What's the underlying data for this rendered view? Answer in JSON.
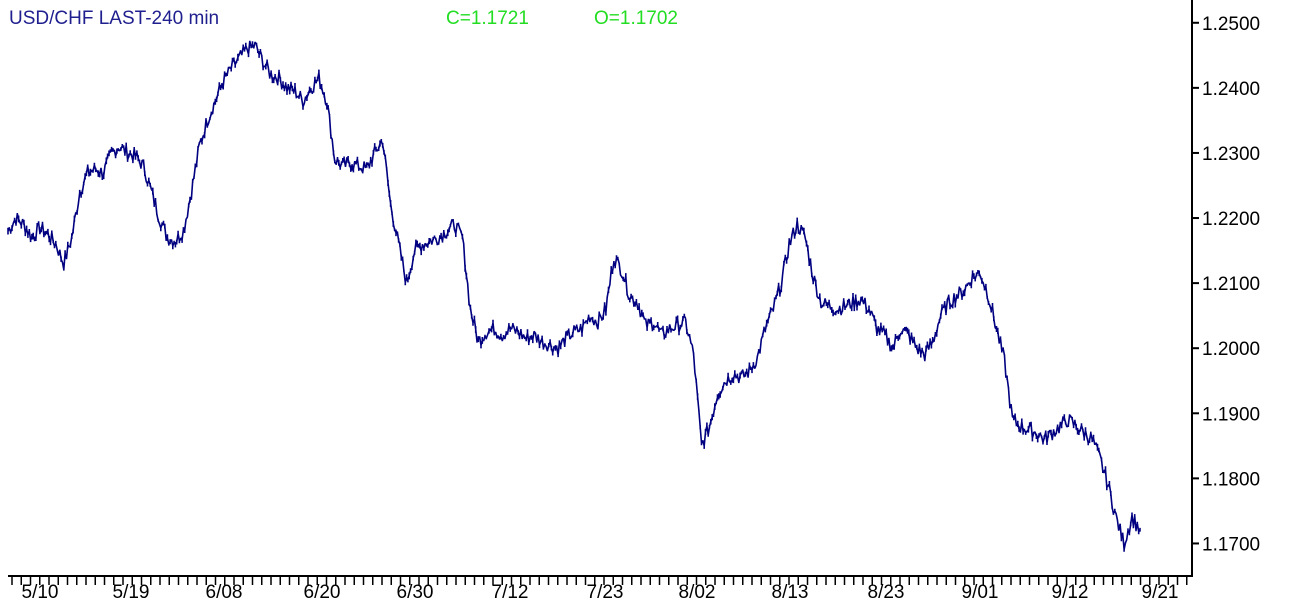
{
  "header": {
    "title": "USD/CHF LAST-240 min",
    "close": "C=1.1721",
    "open": "O=1.1702"
  },
  "colors": {
    "title": "#1f1f8f",
    "readout": "#22dd22",
    "series": "#000080",
    "axis": "#000000",
    "background": "#ffffff"
  },
  "chart_data": {
    "type": "line",
    "title": "USD/CHF LAST-240 min",
    "xlabel": "",
    "ylabel": "",
    "ylim": [
      1.165,
      1.2535
    ],
    "y_ticks": [
      1.25,
      1.24,
      1.23,
      1.22,
      1.21,
      1.2,
      1.19,
      1.18,
      1.17
    ],
    "y_tick_labels": [
      "1.2500",
      "1.2400",
      "1.2300",
      "1.2200",
      "1.2100",
      "1.2000",
      "1.1900",
      "1.1800",
      "1.1700"
    ],
    "x_tick_labels": [
      "5/10",
      "5/19",
      "6/08",
      "6/20",
      "6/30",
      "7/12",
      "7/23",
      "8/02",
      "8/13",
      "8/23",
      "9/01",
      "9/12",
      "9/21"
    ],
    "grid": false,
    "legend": "none",
    "series": [
      {
        "values": [
          1.218,
          1.22,
          1.219,
          1.217,
          1.2185,
          1.2175,
          1.216,
          1.213,
          1.217,
          1.224,
          1.227,
          1.2275,
          1.227,
          1.23,
          1.231,
          1.23,
          1.2295,
          1.228,
          1.224,
          1.22,
          1.217,
          1.2165,
          1.218,
          1.224,
          1.231,
          1.235,
          1.238,
          1.241,
          1.243,
          1.2445,
          1.246,
          1.2465,
          1.244,
          1.242,
          1.2415,
          1.24,
          1.2395,
          1.238,
          1.24,
          1.2415,
          1.238,
          1.229,
          1.228,
          1.2285,
          1.228,
          1.2275,
          1.23,
          1.232,
          1.222,
          1.216,
          1.21,
          1.215,
          1.216,
          1.2165,
          1.217,
          1.218,
          1.219,
          1.217,
          1.206,
          1.201,
          1.2025,
          1.203,
          1.202,
          1.203,
          1.2025,
          1.2015,
          1.202,
          1.201,
          1.2005,
          1.2,
          1.2015,
          1.2025,
          1.203,
          1.205,
          1.204,
          1.206,
          1.214,
          1.212,
          1.208,
          1.207,
          1.2035,
          1.204,
          1.202,
          1.203,
          1.2035,
          1.204,
          1.199,
          1.185,
          1.188,
          1.193,
          1.195,
          1.196,
          1.1955,
          1.1965,
          1.1985,
          1.203,
          1.206,
          1.21,
          1.216,
          1.219,
          1.217,
          1.211,
          1.207,
          1.2065,
          1.206,
          1.2065,
          1.207,
          1.2075,
          1.206,
          1.203,
          1.202,
          1.2,
          1.203,
          1.202,
          1.2,
          1.199,
          1.201,
          1.205,
          1.207,
          1.208,
          1.209,
          1.211,
          1.2115,
          1.208,
          1.203,
          1.198,
          1.189,
          1.188,
          1.1875,
          1.187,
          1.186,
          1.187,
          1.188,
          1.189,
          1.188,
          1.187,
          1.186,
          1.183,
          1.179,
          1.174,
          1.17,
          1.174,
          1.1721
        ]
      }
    ]
  }
}
